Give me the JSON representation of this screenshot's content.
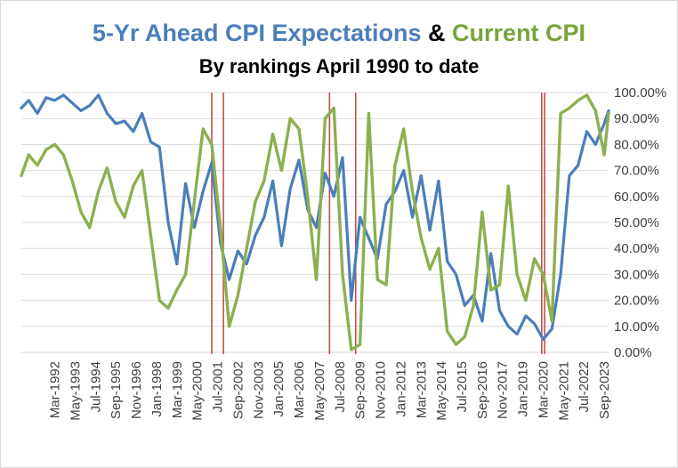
{
  "chart_data": {
    "type": "line",
    "title_parts": [
      "5-Yr Ahead CPI Expectations",
      "&",
      "Current CPI"
    ],
    "subtitle": "By rankings April 1990 to date",
    "y_axis": {
      "position": "right",
      "range": [
        0,
        100
      ],
      "tick_labels": [
        "0.00%",
        "10.00%",
        "20.00%",
        "30.00%",
        "40.00%",
        "50.00%",
        "60.00%",
        "70.00%",
        "80.00%",
        "90.00%",
        "100.00%"
      ],
      "tick_values": [
        0,
        10,
        20,
        30,
        40,
        50,
        60,
        70,
        80,
        90,
        100
      ]
    },
    "x_axis": {
      "range": [
        "1990-04",
        "2023-12"
      ],
      "tick_labels": [
        "Mar-1992",
        "May-1993",
        "Jul-1994",
        "Sep-1995",
        "Nov-1996",
        "Jan-1998",
        "Mar-1999",
        "May-2000",
        "Jul-2001",
        "Sep-2002",
        "Nov-2003",
        "Jan-2005",
        "Mar-2006",
        "May-2007",
        "Jul-2008",
        "Sep-2009",
        "Nov-2010",
        "Jan-2012",
        "Mar-2013",
        "May-2014",
        "Jul-2015",
        "Sep-2016",
        "Nov-2017",
        "Jan-2019",
        "Mar-2020",
        "May-2021",
        "Jul-2022",
        "Sep-2023"
      ],
      "tick_dates": [
        "1992-03",
        "1993-05",
        "1994-07",
        "1995-09",
        "1996-11",
        "1998-01",
        "1999-03",
        "2000-05",
        "2001-07",
        "2002-09",
        "2003-11",
        "2005-01",
        "2006-03",
        "2007-05",
        "2008-07",
        "2009-09",
        "2010-11",
        "2012-01",
        "2013-03",
        "2014-05",
        "2015-07",
        "2016-09",
        "2017-11",
        "2019-01",
        "2020-03",
        "2021-05",
        "2022-07",
        "2023-09"
      ]
    },
    "grid": "horizontal",
    "legend": "none",
    "recession_markers": [
      "2001-03",
      "2001-11",
      "2007-12",
      "2009-06",
      "2020-02",
      "2020-04"
    ],
    "colors": {
      "series_a": "#4a7ebb",
      "series_b": "#8cb04f",
      "markers": "#c0504d",
      "grid": "#d9d9d9"
    },
    "series": [
      {
        "key": "expectations",
        "x": [
          "1990-04",
          "1990-09",
          "1991-03",
          "1991-09",
          "1992-03",
          "1992-09",
          "1993-03",
          "1993-09",
          "1994-03",
          "1994-09",
          "1995-03",
          "1995-09",
          "1996-03",
          "1996-09",
          "1997-03",
          "1997-09",
          "1998-03",
          "1998-09",
          "1999-03",
          "1999-09",
          "2000-03",
          "2000-09",
          "2001-03",
          "2001-09",
          "2002-03",
          "2002-09",
          "2003-03",
          "2003-09",
          "2004-03",
          "2004-09",
          "2005-03",
          "2005-09",
          "2006-03",
          "2006-09",
          "2007-03",
          "2007-09",
          "2008-03",
          "2008-09",
          "2009-03",
          "2009-09",
          "2010-03",
          "2010-09",
          "2011-03",
          "2011-09",
          "2012-03",
          "2012-09",
          "2013-03",
          "2013-09",
          "2014-03",
          "2014-09",
          "2015-03",
          "2015-09",
          "2016-03",
          "2016-09",
          "2017-03",
          "2017-09",
          "2018-03",
          "2018-09",
          "2019-03",
          "2019-09",
          "2020-03",
          "2020-09",
          "2021-03",
          "2021-09",
          "2022-03",
          "2022-09",
          "2023-03",
          "2023-09",
          "2023-12"
        ],
        "values": [
          94,
          97,
          92,
          98,
          97,
          99,
          96,
          93,
          95,
          99,
          92,
          88,
          89,
          85,
          92,
          81,
          79,
          50,
          34,
          65,
          48,
          62,
          73,
          42,
          28,
          39,
          34,
          45,
          52,
          66,
          41,
          63,
          74,
          55,
          48,
          69,
          60,
          75,
          20,
          52,
          44,
          36,
          57,
          62,
          70,
          52,
          68,
          47,
          66,
          35,
          30,
          18,
          22,
          12,
          38,
          16,
          10,
          7,
          14,
          11,
          5,
          9,
          30,
          68,
          72,
          85,
          80,
          88,
          93
        ]
      },
      {
        "key": "current",
        "x": [
          "1990-04",
          "1990-09",
          "1991-03",
          "1991-09",
          "1992-03",
          "1992-09",
          "1993-03",
          "1993-09",
          "1994-03",
          "1994-09",
          "1995-03",
          "1995-09",
          "1996-03",
          "1996-09",
          "1997-03",
          "1997-09",
          "1998-03",
          "1998-09",
          "1999-03",
          "1999-09",
          "2000-03",
          "2000-09",
          "2001-03",
          "2001-09",
          "2002-03",
          "2002-09",
          "2003-03",
          "2003-09",
          "2004-03",
          "2004-09",
          "2005-03",
          "2005-09",
          "2006-03",
          "2006-09",
          "2007-03",
          "2007-09",
          "2008-03",
          "2008-09",
          "2009-03",
          "2009-09",
          "2010-03",
          "2010-09",
          "2011-03",
          "2011-09",
          "2012-03",
          "2012-09",
          "2013-03",
          "2013-09",
          "2014-03",
          "2014-09",
          "2015-03",
          "2015-09",
          "2016-03",
          "2016-09",
          "2017-03",
          "2017-09",
          "2018-03",
          "2018-09",
          "2019-03",
          "2019-09",
          "2020-03",
          "2020-09",
          "2021-03",
          "2021-09",
          "2022-03",
          "2022-09",
          "2023-03",
          "2023-09",
          "2023-12"
        ],
        "values": [
          68,
          76,
          72,
          78,
          80,
          76,
          66,
          54,
          48,
          62,
          71,
          58,
          52,
          64,
          70,
          45,
          20,
          17,
          24,
          30,
          58,
          86,
          80,
          48,
          10,
          22,
          40,
          58,
          66,
          84,
          70,
          90,
          86,
          60,
          28,
          90,
          94,
          30,
          1,
          3,
          92,
          28,
          26,
          72,
          86,
          62,
          44,
          32,
          40,
          8,
          3,
          6,
          18,
          54,
          24,
          26,
          64,
          30,
          20,
          36,
          30,
          12,
          92,
          94,
          97,
          99,
          93,
          76,
          92
        ]
      }
    ]
  }
}
